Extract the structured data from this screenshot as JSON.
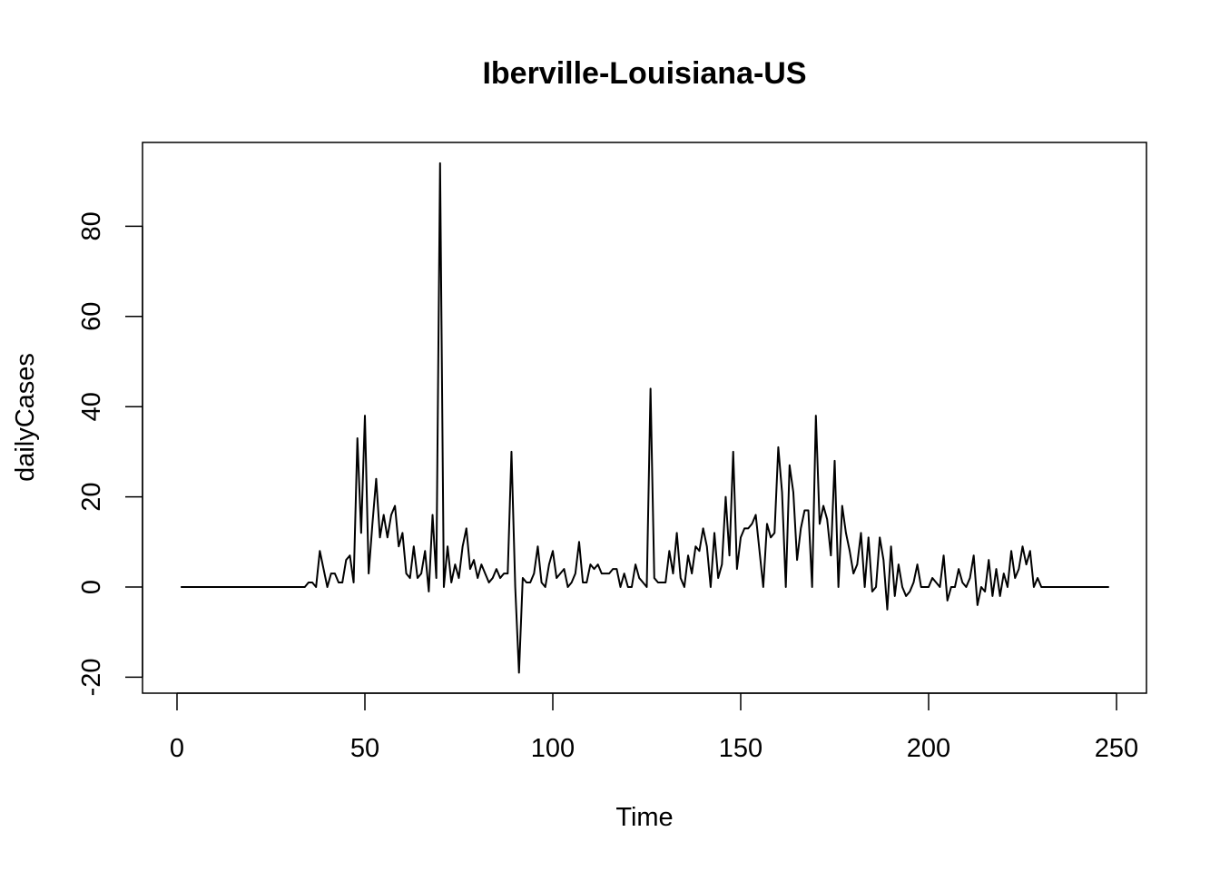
{
  "chart_data": {
    "type": "line",
    "title": "Iberville-Louisiana-US",
    "xlabel": "Time",
    "ylabel": "dailyCases",
    "xlim": [
      0,
      250
    ],
    "ylim": [
      -20,
      90
    ],
    "xticks": [
      0,
      50,
      100,
      150,
      200,
      250
    ],
    "yticks": [
      -20,
      0,
      20,
      40,
      60,
      80
    ],
    "xtick_labels": [
      "0",
      "50",
      "100",
      "150",
      "200",
      "250"
    ],
    "ytick_labels": [
      "-20",
      "0",
      "20",
      "40",
      "60",
      "80"
    ],
    "grid": false,
    "legend": "none",
    "line_color": "#000000",
    "series": [
      {
        "x_start": 1,
        "values": [
          0,
          0,
          0,
          0,
          0,
          0,
          0,
          0,
          0,
          0,
          0,
          0,
          0,
          0,
          0,
          0,
          0,
          0,
          0,
          0,
          0,
          0,
          0,
          0,
          0,
          0,
          0,
          0,
          0,
          0,
          0,
          0,
          0,
          0,
          1,
          1,
          0,
          8,
          4,
          0,
          3,
          3,
          1,
          1,
          6,
          7,
          1,
          33,
          12,
          38,
          3,
          14,
          24,
          11,
          16,
          11,
          16,
          18,
          9,
          12,
          3,
          2,
          9,
          2,
          3,
          8,
          -1,
          16,
          2,
          94,
          0,
          9,
          1,
          5,
          2,
          9,
          13,
          4,
          6,
          2,
          5,
          3,
          1,
          2,
          4,
          2,
          3,
          3,
          30,
          0,
          -19,
          2,
          1,
          1,
          3,
          9,
          1,
          0,
          5,
          8,
          2,
          3,
          4,
          0,
          1,
          3,
          10,
          1,
          1,
          5,
          4,
          5,
          3,
          3,
          3,
          4,
          4,
          0,
          3,
          0,
          0,
          5,
          2,
          1,
          0,
          44,
          2,
          1,
          1,
          1,
          8,
          3,
          12,
          2,
          0,
          7,
          3,
          9,
          8,
          13,
          9,
          0,
          12,
          2,
          5,
          20,
          7,
          30,
          4,
          11,
          13,
          13,
          14,
          16,
          8,
          0,
          14,
          11,
          12,
          31,
          21,
          0,
          27,
          21,
          6,
          13,
          17,
          17,
          0,
          38,
          14,
          18,
          15,
          7,
          28,
          0,
          18,
          12,
          8,
          3,
          5,
          12,
          0,
          11,
          -1,
          0,
          11,
          6,
          -5,
          9,
          -2,
          5,
          0,
          -2,
          -1,
          1,
          5,
          0,
          0,
          0,
          2,
          1,
          0,
          7,
          -3,
          0,
          0,
          4,
          1,
          0,
          2,
          7,
          -4,
          0,
          -1,
          6,
          -2,
          4,
          -2,
          3,
          0,
          8,
          2,
          4,
          9,
          5,
          8,
          0,
          2,
          0,
          0,
          0,
          0,
          0,
          0,
          0,
          0,
          0,
          0,
          0,
          0,
          0,
          0,
          0,
          0,
          0,
          0,
          0
        ]
      }
    ]
  }
}
